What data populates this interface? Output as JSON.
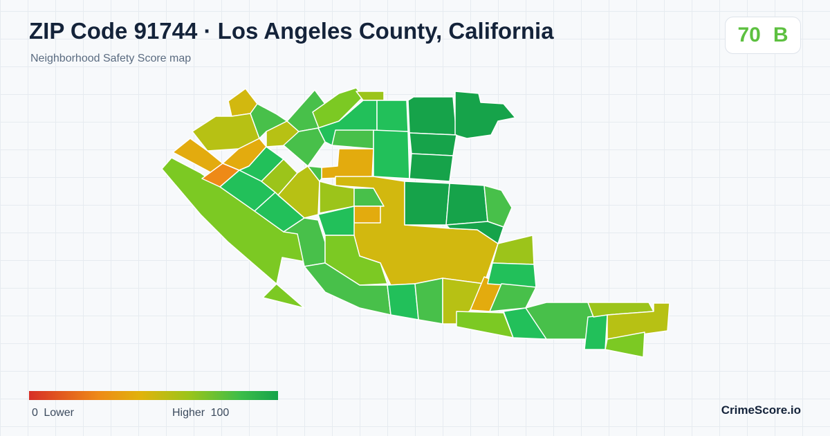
{
  "header": {
    "title": "ZIP Code 91744 · Los Angeles County, California",
    "subtitle": "Neighborhood Safety Score map"
  },
  "score_badge": {
    "score": "70",
    "grade": "B",
    "color": "#5dc040"
  },
  "legend": {
    "min_value": "0",
    "min_label": "Lower",
    "max_label": "Higher",
    "max_value": "100",
    "colors": [
      "#d72f26",
      "#ee8a17",
      "#e0b30c",
      "#9cc41a",
      "#3cbd49",
      "#16a34a"
    ]
  },
  "brand": {
    "name": "CrimeScore.io"
  },
  "map": {
    "colors": {
      "orange": "#ee8a17",
      "amber": "#e3ab0e",
      "mustard": "#d2b80f",
      "olive": "#b7c114",
      "lime": "#9cc41a",
      "yellow_green": "#7cc923",
      "green": "#48c04a",
      "bright_green": "#22c05a",
      "dark_green": "#16a34a"
    }
  }
}
